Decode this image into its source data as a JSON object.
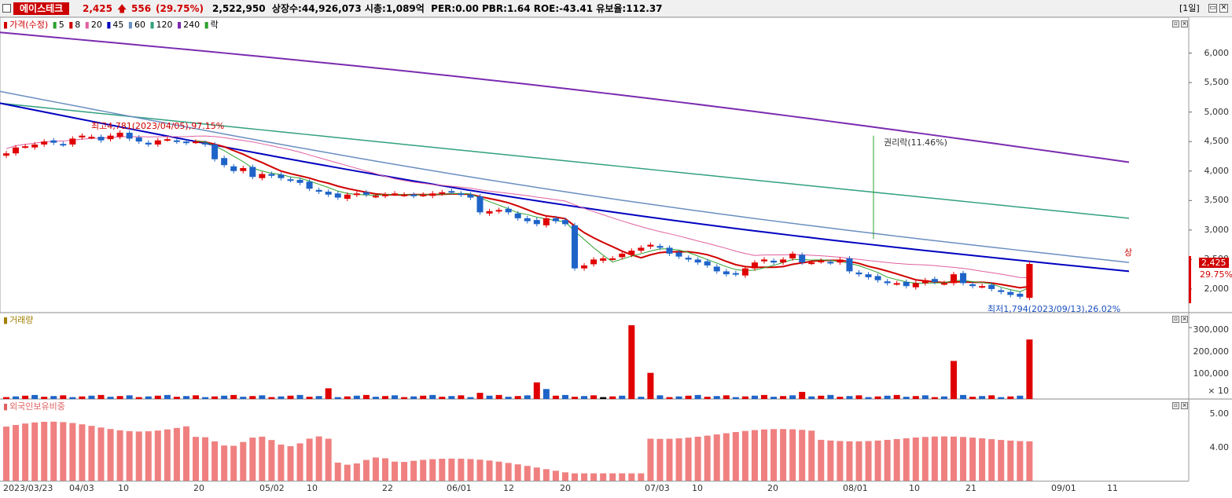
{
  "header": {
    "stock_name": "에이스테크",
    "price": "2,425",
    "change_arrow": "up-arrow-icon",
    "change": "556",
    "change_pct": "(29.75%)",
    "info": "2,522,950  상장수:44,926,073 시총:1,089억  PER:0.00 PBR:1.64 ROE:-43.41 유보율:112.37",
    "period": "[1일]"
  },
  "price_panel": {
    "legend_main": "가격(수정)",
    "ma": [
      {
        "label": "5",
        "color": "#2ca02c"
      },
      {
        "label": "8",
        "color": "#d00000"
      },
      {
        "label": "20",
        "color": "#e060a0"
      },
      {
        "label": "45",
        "color": "#0000c0"
      },
      {
        "label": "60",
        "color": "#6a8fc0"
      },
      {
        "label": "120",
        "color": "#30a080"
      },
      {
        "label": "240",
        "color": "#7a2bb0"
      }
    ],
    "legend_rak": "락",
    "high_annotation": "최고4,781(2023/04/05),97.15%",
    "low_annotation": "최저1,794(2023/09/13),26.02%",
    "rights_annotation": "권리락(11.46%)",
    "upper_limit_mark": "상",
    "price_badge": "2,425",
    "pct_badge": "29.75%",
    "y_ticks": [
      "6,000",
      "5,500",
      "5,000",
      "4,500",
      "4,000",
      "3,500",
      "3,000",
      "2,500",
      "2,000"
    ]
  },
  "volume_panel": {
    "legend": "거래량",
    "y_ticks": [
      "300,000",
      "200,000",
      "100,000"
    ],
    "unit": "× 10"
  },
  "foreign_panel": {
    "legend": "외국인보유비중",
    "y_ticks": [
      "5.00",
      "4.00"
    ]
  },
  "x_axis": [
    "2023/03/23",
    "04/03",
    "10",
    "20",
    "05/02",
    "10",
    "22",
    "06/01",
    "12",
    "20",
    "07/03",
    "10",
    "20",
    "08/01",
    "10",
    "21",
    "09/01",
    "11"
  ],
  "chart_data": {
    "type": "candlestick",
    "candles_close_approx": [
      4300,
      4400,
      4420,
      4450,
      4500,
      4480,
      4450,
      4550,
      4600,
      4580,
      4520,
      4600,
      4650,
      4550,
      4500,
      4450,
      4520,
      4540,
      4500,
      4480,
      4500,
      4450,
      4200,
      4100,
      4000,
      4050,
      3900,
      3950,
      3920,
      3880,
      3850,
      3800,
      3700,
      3650,
      3600,
      3550,
      3600,
      3620,
      3600,
      3580,
      3600,
      3620,
      3600,
      3580,
      3600,
      3620,
      3640,
      3640,
      3600,
      3550,
      3300,
      3320,
      3340,
      3300,
      3200,
      3150,
      3100,
      3200,
      3150,
      3100,
      2350,
      2400,
      2500,
      2520,
      2520,
      2600,
      2650,
      2700,
      2750,
      2700,
      2600,
      2550,
      2500,
      2450,
      2400,
      2300,
      2250,
      2250,
      2350,
      2450,
      2500,
      2450,
      2500,
      2600,
      2450,
      2450,
      2480,
      2450,
      2500,
      2300,
      2250,
      2200,
      2150,
      2100,
      2100,
      2050,
      2100,
      2150,
      2120,
      2100,
      2250,
      2100,
      2050,
      2050,
      2000,
      1950,
      1900,
      1870,
      2425
    ],
    "ylim": [
      1600,
      6500
    ],
    "volume_ylim": [
      0,
      330000
    ],
    "foreign_ratio_ylim": [
      2.4,
      5.4
    ]
  }
}
